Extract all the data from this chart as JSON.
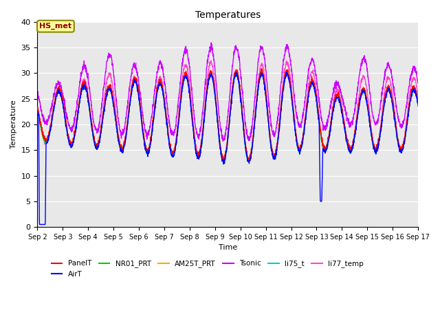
{
  "title": "Temperatures",
  "xlabel": "Time",
  "ylabel": "Temperature",
  "ylim": [
    0,
    40
  ],
  "xtick_labels": [
    "Sep 2",
    "Sep 3",
    "Sep 4",
    "Sep 5",
    "Sep 6",
    "Sep 7",
    "Sep 8",
    "Sep 9",
    "Sep 10",
    "Sep 11",
    "Sep 12",
    "Sep 13",
    "Sep 14",
    "Sep 15",
    "Sep 16",
    "Sep 17"
  ],
  "series": {
    "PanelT": {
      "color": "#ff0000",
      "lw": 1.0
    },
    "AirT": {
      "color": "#0000ff",
      "lw": 1.0
    },
    "NR01_PRT": {
      "color": "#00cc00",
      "lw": 1.0
    },
    "AM25T_PRT": {
      "color": "#ffaa00",
      "lw": 1.0
    },
    "Tsonic": {
      "color": "#cc00ff",
      "lw": 1.0
    },
    "li75_t": {
      "color": "#00cccc",
      "lw": 1.0
    },
    "li77_temp": {
      "color": "#ff44cc",
      "lw": 1.0
    }
  },
  "annotation_text": "HS_met",
  "annotation_boxcolor": "#ffff99",
  "annotation_edgecolor": "#888800",
  "background_color": "#e8e8e8",
  "grid_color": "#ffffff",
  "figsize": [
    6.4,
    4.8
  ],
  "dpi": 100
}
